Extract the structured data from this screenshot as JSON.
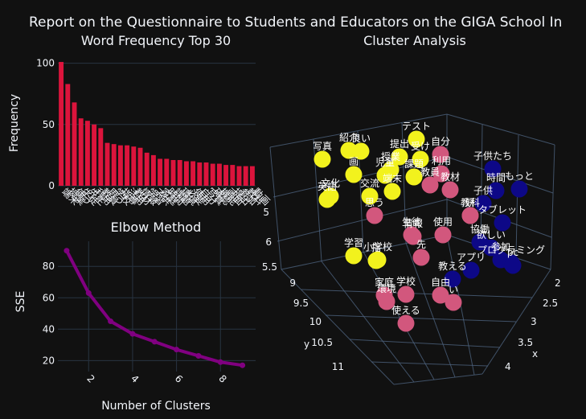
{
  "title": "Report on the Questionnaire to Students and Educators on the GIGA School In",
  "chart_data": [
    {
      "type": "bar",
      "title": "Word Frequency Top 30",
      "xlabel": "",
      "ylabel": "Frequency",
      "ylim": [
        0,
        103
      ],
      "yticks": [
        0,
        50,
        100
      ],
      "color": "#dc143c",
      "categories": [
        "端末",
        "授業",
        "使う",
        "生徒",
        "先生",
        "利用",
        "教員",
        "思う",
        "学校",
        "指導",
        "活用",
        "教材",
        "情報",
        "学習",
        "子供",
        "家庭",
        "時間",
        "課題",
        "環境",
        "必要",
        "使用",
        "自分",
        "写真",
        "確認",
        "機能",
        "画面",
        "提出",
        "参加",
        "教科",
        "動画"
      ],
      "values": [
        101,
        83,
        68,
        55,
        53,
        50,
        47,
        35,
        34,
        33,
        33,
        32,
        31,
        27,
        25,
        22,
        22,
        21,
        21,
        20,
        20,
        19,
        19,
        18,
        18,
        17,
        17,
        16,
        16,
        16
      ]
    },
    {
      "type": "line",
      "title": "Elbow Method",
      "xlabel": "Number of Clusters",
      "ylabel": "SSE",
      "xlim": [
        0.6,
        9.6
      ],
      "ylim": [
        13,
        96
      ],
      "xticks": [
        2,
        4,
        6,
        8
      ],
      "yticks": [
        20,
        40,
        60,
        80
      ],
      "color": "#800080",
      "x": [
        1,
        2,
        3,
        4,
        5,
        6,
        7,
        8,
        9
      ],
      "values": [
        90,
        63,
        45,
        37,
        32,
        27,
        23,
        19,
        17
      ]
    },
    {
      "type": "scatter",
      "title": "Cluster Analysis",
      "xlabel": "x",
      "ylabel": "y",
      "zlabel": "z",
      "xticks": [
        "2",
        "2.5",
        "3",
        "3.5",
        "4"
      ],
      "yticks": [
        "9",
        "9.5",
        "10",
        "10.5",
        "11"
      ],
      "zticks": [
        "5.5",
        "6",
        "5"
      ],
      "cluster_colors": [
        "#f2f21d",
        "#d2577d",
        "#0d0887"
      ],
      "points": [
        {
          "label": "テスト",
          "c": 0
        },
        {
          "label": "紹介",
          "c": 0
        },
        {
          "label": "良い",
          "c": 0
        },
        {
          "label": "写真",
          "c": 0
        },
        {
          "label": "提出",
          "c": 0
        },
        {
          "label": "受け",
          "c": 0
        },
        {
          "label": "授業",
          "c": 0
        },
        {
          "label": "児童",
          "c": 0
        },
        {
          "label": "課題",
          "c": 0
        },
        {
          "label": "画",
          "c": 0
        },
        {
          "label": "文化",
          "c": 0
        },
        {
          "label": "英語",
          "c": 0
        },
        {
          "label": "交流",
          "c": 0
        },
        {
          "label": "端末",
          "c": 0
        },
        {
          "label": "学習",
          "c": 0
        },
        {
          "label": "小学校",
          "c": 0
        },
        {
          "label": "指",
          "c": 0
        },
        {
          "label": "自分",
          "c": 1
        },
        {
          "label": "利用",
          "c": 1
        },
        {
          "label": "教員",
          "c": 1
        },
        {
          "label": "教材",
          "c": 1
        },
        {
          "label": "生徒",
          "c": 1
        },
        {
          "label": "情報",
          "c": 1
        },
        {
          "label": "教科",
          "c": 1
        },
        {
          "label": "使用",
          "c": 1
        },
        {
          "label": "研",
          "c": 1
        },
        {
          "label": "先",
          "c": 1
        },
        {
          "label": "家庭",
          "c": 1
        },
        {
          "label": "環境",
          "c": 1
        },
        {
          "label": "学校",
          "c": 1
        },
        {
          "label": "自由",
          "c": 1
        },
        {
          "label": "使える",
          "c": 1
        },
        {
          "label": "い",
          "c": 1
        },
        {
          "label": "思う",
          "c": 1
        },
        {
          "label": "子供たち",
          "c": 2
        },
        {
          "label": "時間",
          "c": 2
        },
        {
          "label": "もっと",
          "c": 2
        },
        {
          "label": "子供",
          "c": 2
        },
        {
          "label": "タブレット",
          "c": 2
        },
        {
          "label": "協働",
          "c": 2
        },
        {
          "label": "欲しい",
          "c": 2
        },
        {
          "label": "参加",
          "c": 2
        },
        {
          "label": "アプリ",
          "c": 2
        },
        {
          "label": "プログラミング",
          "c": 2
        },
        {
          "label": "pc",
          "c": 2
        },
        {
          "label": "教える",
          "c": 2
        }
      ]
    }
  ]
}
